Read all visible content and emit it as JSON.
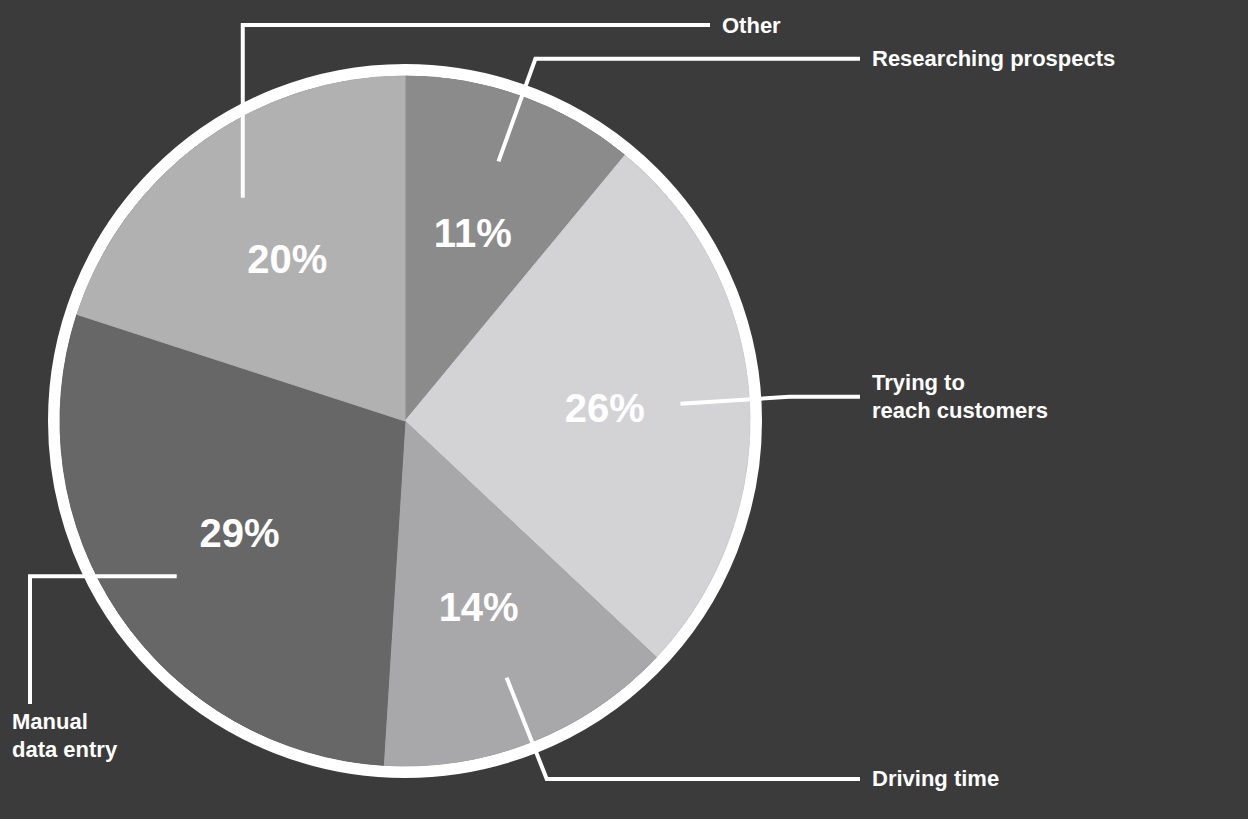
{
  "chart_data": {
    "type": "pie",
    "categories": [
      "Researching prospects",
      "Trying to\nreach customers",
      "Driving time",
      "Manual\ndata entry",
      "Other"
    ],
    "values": [
      11,
      26,
      14,
      29,
      20
    ],
    "value_labels": [
      "11%",
      "26%",
      "14%",
      "29%",
      "20%"
    ],
    "colors": [
      "#8b8b8c",
      "#d3d3d5",
      "#a8a8aa",
      "#676768",
      "#b1b1b2"
    ],
    "data_labels": true
  }
}
